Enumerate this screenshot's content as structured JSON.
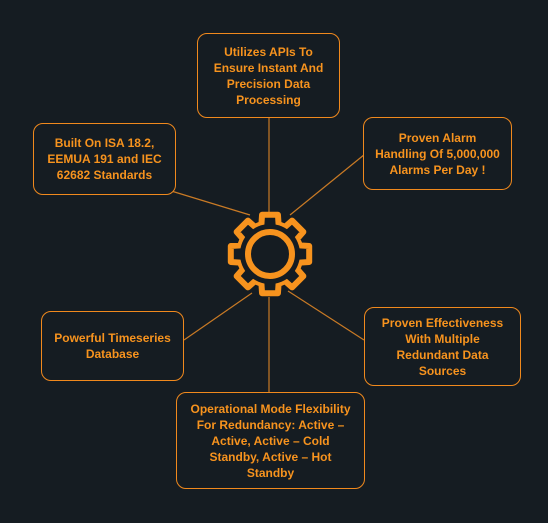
{
  "colors": {
    "background": "#151c22",
    "accent": "#f7931e",
    "connector": "#c97a25"
  },
  "center": {
    "icon": "gear-icon"
  },
  "features": {
    "apis": "Utilizes APIs To\nEnsure Instant And\nPrecision Data\nProcessing",
    "alarm": "Proven Alarm\nHandling Of 5,000,000\nAlarms Per Day !",
    "isa": "Built On ISA 18.2,\nEEMUA 191 and IEC\n62682 Standards",
    "timeseries": "Powerful Timeseries\nDatabase",
    "effectiveness": "Proven Effectiveness\nWith Multiple\nRedundant Data\nSources",
    "redundancy": "Operational Mode Flexibility\nFor Redundancy: Active –\nActive, Active – Cold\nStandby, Active – Hot\nStandby"
  }
}
